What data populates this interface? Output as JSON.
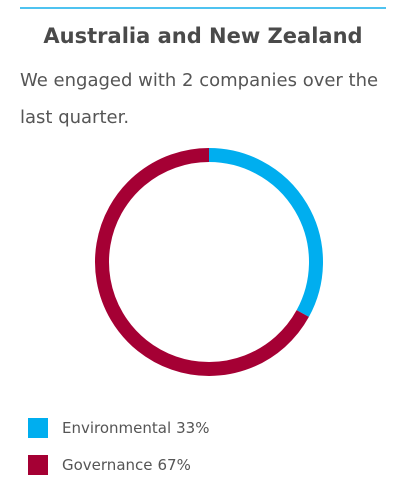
{
  "chart_data": {
    "type": "donut",
    "title": "Australia and New Zealand",
    "subtitle": "We engaged with 2 companies over the last quarter.",
    "categories": [
      "Environmental",
      "Governance"
    ],
    "values": [
      33,
      67
    ],
    "value_labels": [
      "33%",
      "67%"
    ],
    "colors": [
      "#00aeef",
      "#a50034"
    ],
    "legend": "bottom-left"
  }
}
